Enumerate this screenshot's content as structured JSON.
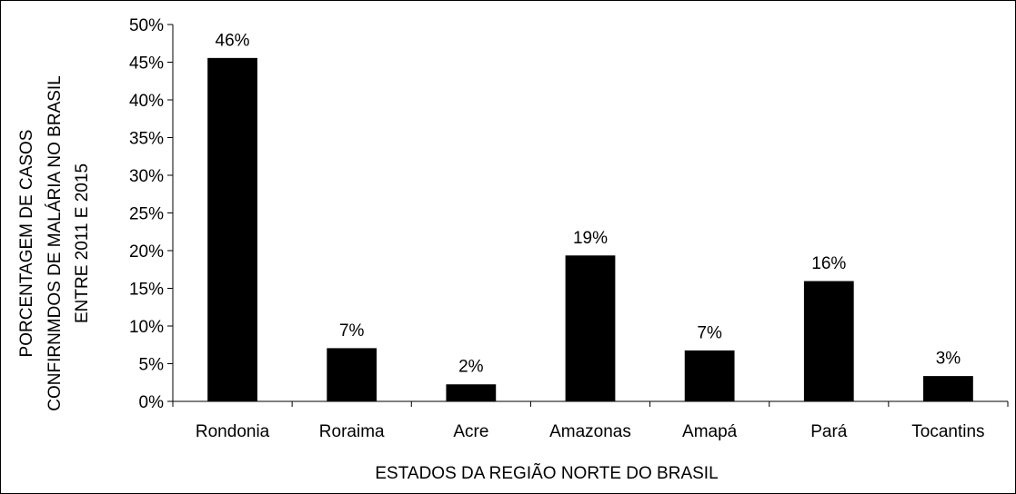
{
  "chart_data": {
    "type": "bar",
    "title": "",
    "xlabel": "ESTADOS DA REGIÃO NORTE DO BRASIL",
    "ylabel_lines": [
      "PORCENTAGEM DE CASOS",
      "CONFIRNMDOS DE MALÁRIA NO BRASIL",
      "ENTRE 2011 E 2015"
    ],
    "categories": [
      "Rondonia",
      "Roraima",
      "Acre",
      "Amazonas",
      "Amapá",
      "Pará",
      "Tocantins"
    ],
    "values": [
      45.5,
      7.0,
      2.2,
      19.3,
      6.7,
      15.9,
      3.3
    ],
    "data_labels": [
      "46%",
      "7%",
      "2%",
      "19%",
      "7%",
      "16%",
      "3%"
    ],
    "ylim": [
      0,
      50
    ],
    "yticks": [
      0,
      5,
      10,
      15,
      20,
      25,
      30,
      35,
      40,
      45,
      50
    ],
    "ytick_labels": [
      "0%",
      "5%",
      "10%",
      "15%",
      "20%",
      "25%",
      "30%",
      "35%",
      "40%",
      "45%",
      "50%"
    ],
    "grid": false,
    "legend": "none",
    "bar_color": "#000000"
  }
}
